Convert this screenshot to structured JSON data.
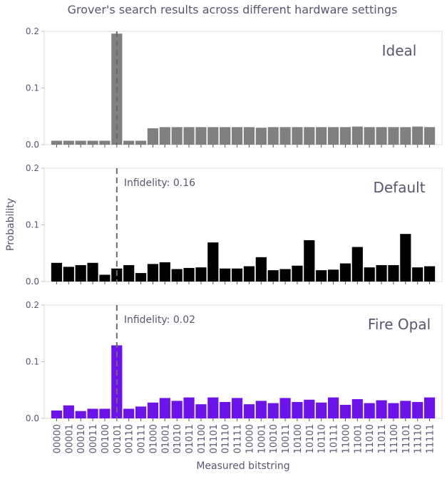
{
  "figure": {
    "title": "Grover's search results across different hardware settings",
    "ylabel": "Probability",
    "xlabel": "Measured bitstring"
  },
  "colors": {
    "text": "#5b5470",
    "tick_text": "#5b5470",
    "axis": "#dddddd",
    "dashed_line": "#6a6a6a"
  },
  "chart_data": [
    {
      "type": "bar",
      "panel": "Ideal",
      "label": "Ideal",
      "color": "#808080",
      "ylim": [
        0,
        0.2
      ],
      "yticks": [
        0.0,
        0.1,
        0.2
      ],
      "ytick_labels": [
        "0.0",
        "0.1",
        "0.2"
      ],
      "marked_index": 5,
      "annotation": "",
      "categories": [
        "00000",
        "00001",
        "00010",
        "00011",
        "00100",
        "00101",
        "00110",
        "00111",
        "01000",
        "01001",
        "01010",
        "01011",
        "01100",
        "01101",
        "01110",
        "01111",
        "10000",
        "10001",
        "10010",
        "10011",
        "10100",
        "10101",
        "10110",
        "10111",
        "11000",
        "11001",
        "11010",
        "11011",
        "11100",
        "11101",
        "11110",
        "11111"
      ],
      "values": [
        0.007,
        0.007,
        0.007,
        0.007,
        0.007,
        0.196,
        0.007,
        0.007,
        0.029,
        0.031,
        0.031,
        0.031,
        0.031,
        0.031,
        0.031,
        0.031,
        0.031,
        0.03,
        0.031,
        0.031,
        0.031,
        0.031,
        0.031,
        0.031,
        0.031,
        0.032,
        0.031,
        0.031,
        0.031,
        0.031,
        0.032,
        0.031
      ]
    },
    {
      "type": "bar",
      "panel": "Default",
      "label": "Default",
      "color": "#000000",
      "ylim": [
        0,
        0.2
      ],
      "yticks": [
        0.0,
        0.1,
        0.2
      ],
      "ytick_labels": [
        "0.0",
        "0.1",
        "0.2"
      ],
      "marked_index": 5,
      "annotation": "Infidelity: 0.16",
      "categories": [
        "00000",
        "00001",
        "00010",
        "00011",
        "00100",
        "00101",
        "00110",
        "00111",
        "01000",
        "01001",
        "01010",
        "01011",
        "01100",
        "01101",
        "01110",
        "01111",
        "10000",
        "10001",
        "10010",
        "10011",
        "10100",
        "10101",
        "10110",
        "10111",
        "11000",
        "11001",
        "11010",
        "11011",
        "11100",
        "11101",
        "11110",
        "11111"
      ],
      "values": [
        0.033,
        0.026,
        0.029,
        0.033,
        0.012,
        0.023,
        0.029,
        0.015,
        0.031,
        0.034,
        0.022,
        0.024,
        0.025,
        0.069,
        0.023,
        0.023,
        0.027,
        0.043,
        0.02,
        0.022,
        0.028,
        0.073,
        0.02,
        0.021,
        0.032,
        0.061,
        0.025,
        0.029,
        0.029,
        0.084,
        0.025,
        0.027
      ]
    },
    {
      "type": "bar",
      "panel": "Fire Opal",
      "label": "Fire Opal",
      "color": "#6c12ea",
      "ylim": [
        0,
        0.2
      ],
      "yticks": [
        0.0,
        0.1,
        0.2
      ],
      "ytick_labels": [
        "0.0",
        "0.1",
        "0.2"
      ],
      "marked_index": 5,
      "annotation": "Infidelity: 0.02",
      "categories": [
        "00000",
        "00001",
        "00010",
        "00011",
        "00100",
        "00101",
        "00110",
        "00111",
        "01000",
        "01001",
        "01010",
        "01011",
        "01100",
        "01101",
        "01110",
        "01111",
        "10000",
        "10001",
        "10010",
        "10011",
        "10100",
        "10101",
        "10110",
        "10111",
        "11000",
        "11001",
        "11010",
        "11011",
        "11100",
        "11101",
        "11110",
        "11111"
      ],
      "values": [
        0.014,
        0.023,
        0.013,
        0.017,
        0.017,
        0.129,
        0.017,
        0.021,
        0.028,
        0.036,
        0.031,
        0.037,
        0.025,
        0.037,
        0.029,
        0.036,
        0.025,
        0.031,
        0.027,
        0.036,
        0.029,
        0.033,
        0.028,
        0.037,
        0.024,
        0.034,
        0.027,
        0.032,
        0.027,
        0.031,
        0.029,
        0.037
      ]
    }
  ]
}
